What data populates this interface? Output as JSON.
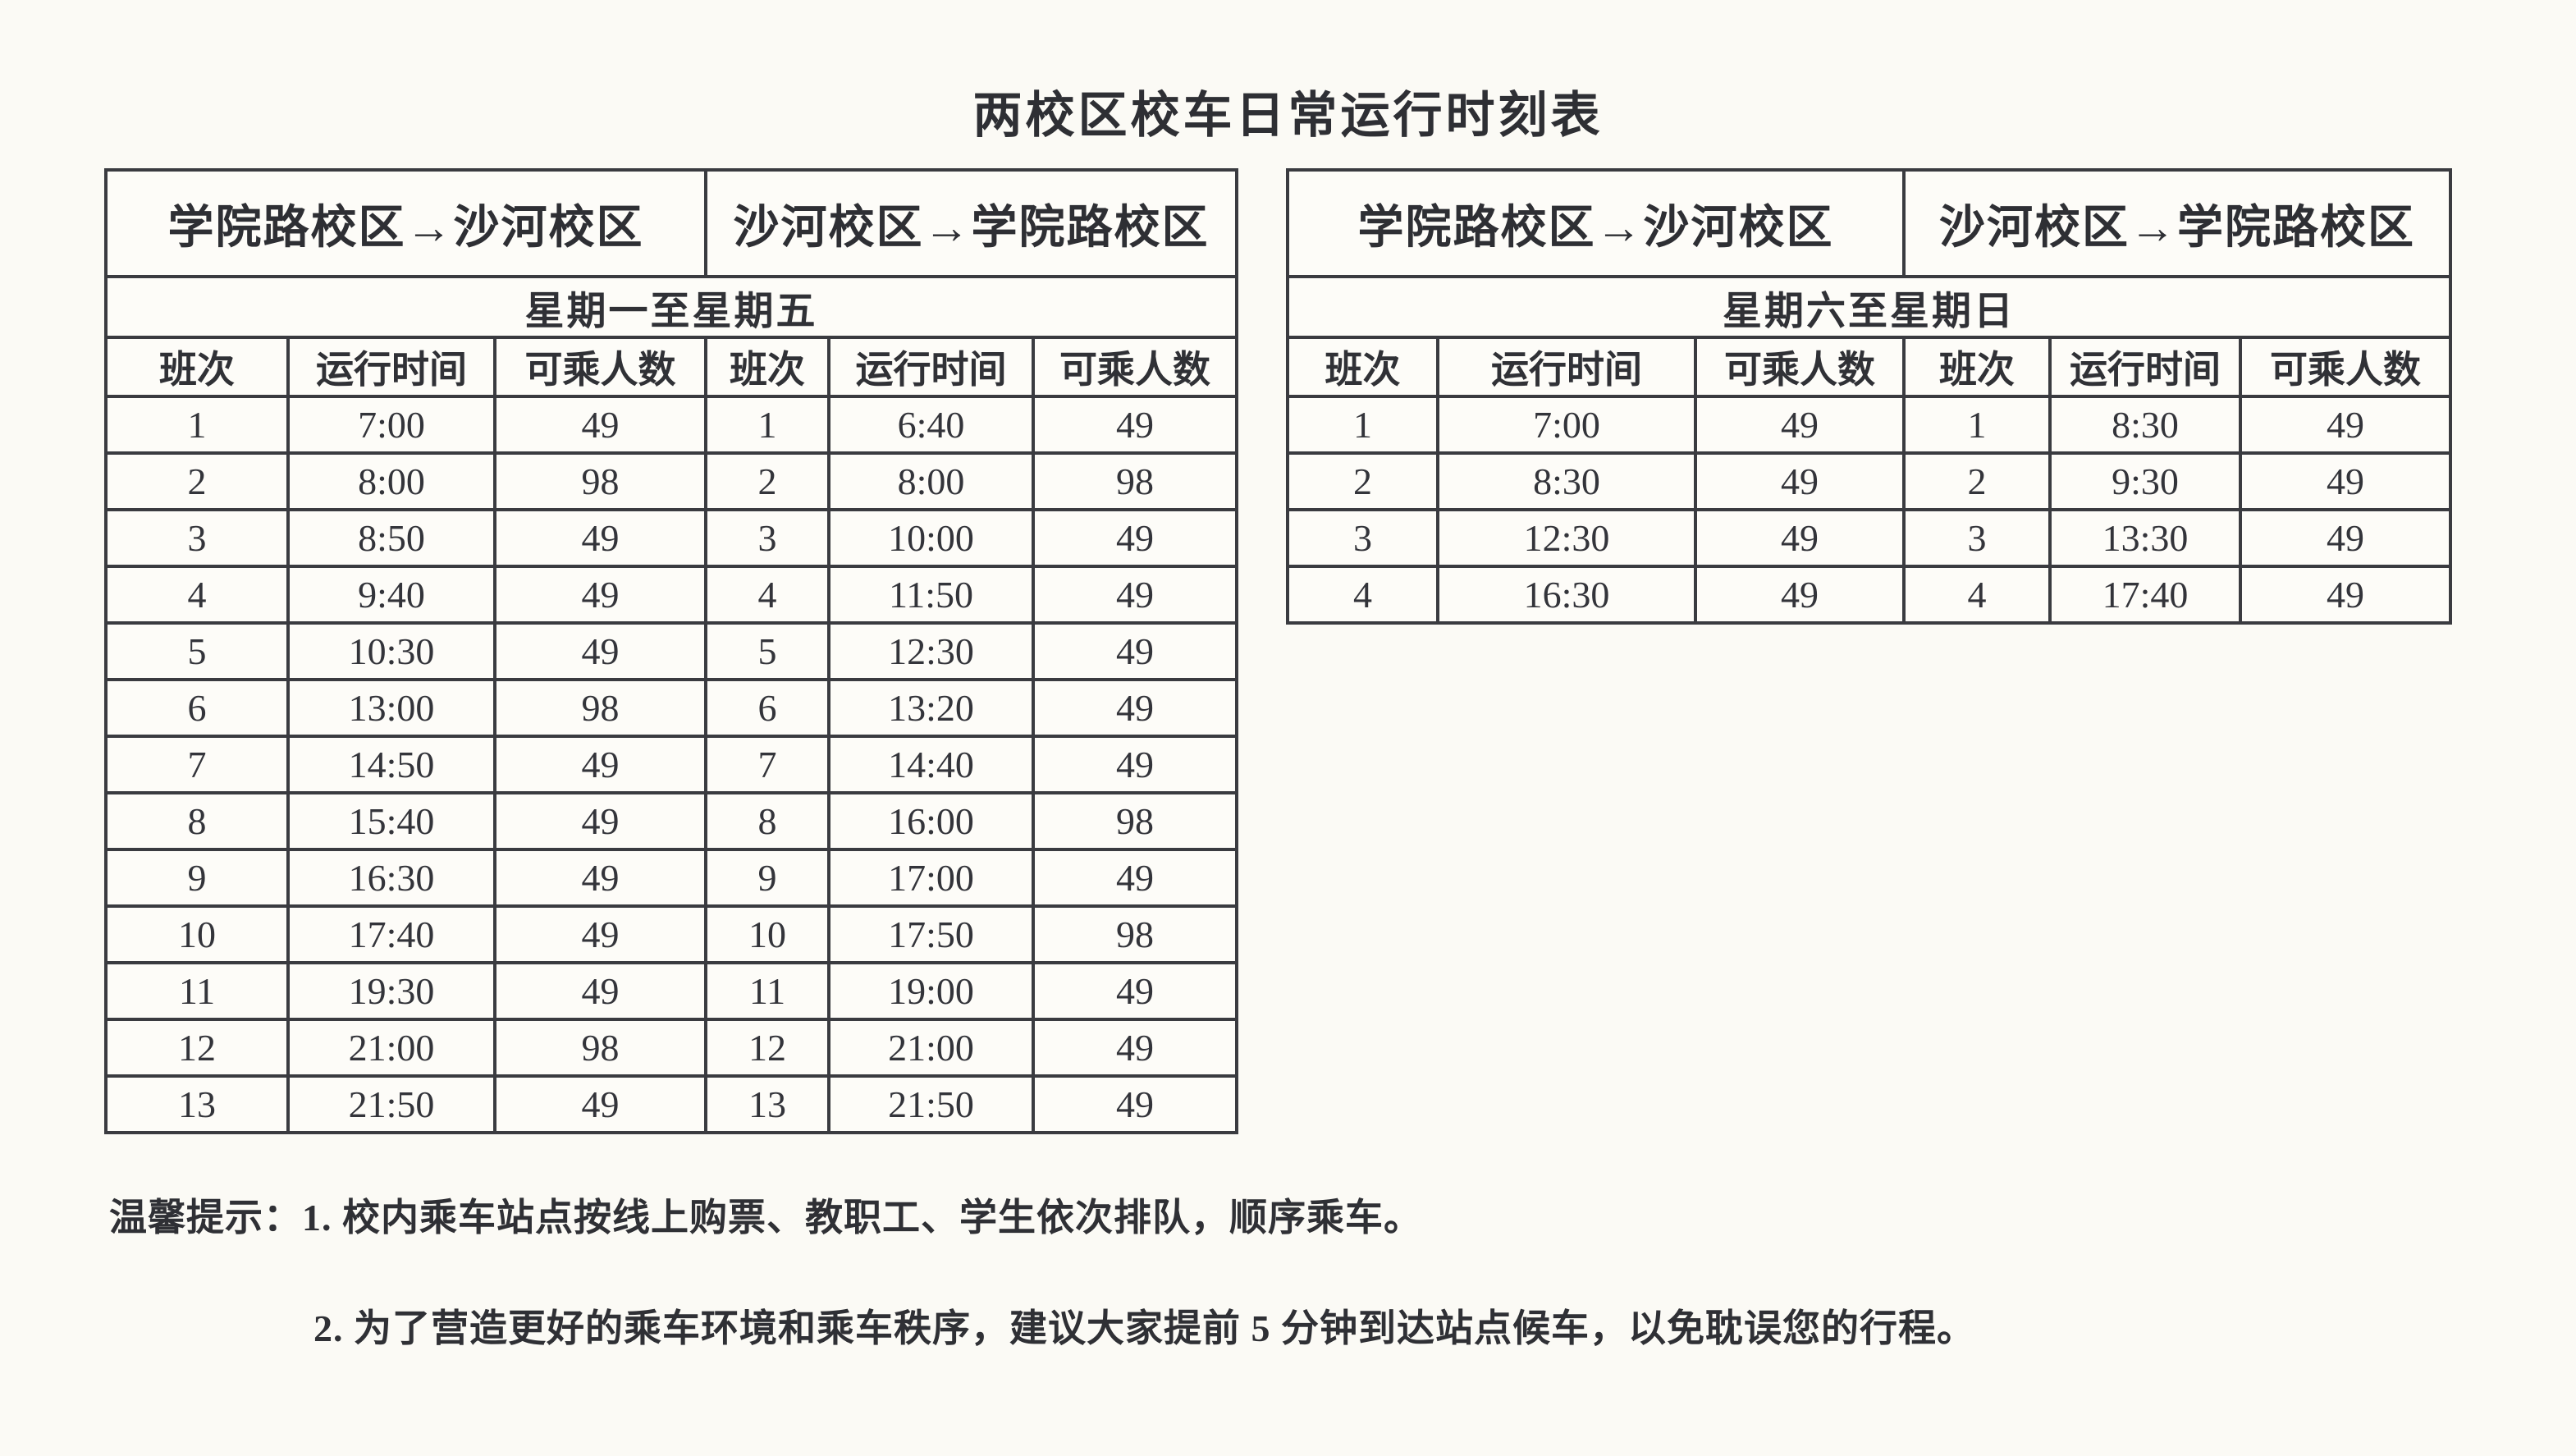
{
  "page": {
    "title": "两校区校车日常运行时刻表"
  },
  "colors": {
    "paper": "#fbfaf5",
    "cell_background": "#fdfcf8",
    "ink": "#303136",
    "border": "#3a3b40"
  },
  "weekday_table": {
    "route_outbound": "学院路校区→沙河校区",
    "route_return": "沙河校区→学院路校区",
    "period": "星期一至星期五",
    "columns": [
      "班次",
      "运行时间",
      "可乘人数",
      "班次",
      "运行时间",
      "可乘人数"
    ],
    "rows": [
      [
        "1",
        "7:00",
        "49",
        "1",
        "6:40",
        "49"
      ],
      [
        "2",
        "8:00",
        "98",
        "2",
        "8:00",
        "98"
      ],
      [
        "3",
        "8:50",
        "49",
        "3",
        "10:00",
        "49"
      ],
      [
        "4",
        "9:40",
        "49",
        "4",
        "11:50",
        "49"
      ],
      [
        "5",
        "10:30",
        "49",
        "5",
        "12:30",
        "49"
      ],
      [
        "6",
        "13:00",
        "98",
        "6",
        "13:20",
        "49"
      ],
      [
        "7",
        "14:50",
        "49",
        "7",
        "14:40",
        "49"
      ],
      [
        "8",
        "15:40",
        "49",
        "8",
        "16:00",
        "98"
      ],
      [
        "9",
        "16:30",
        "49",
        "9",
        "17:00",
        "49"
      ],
      [
        "10",
        "17:40",
        "49",
        "10",
        "17:50",
        "98"
      ],
      [
        "11",
        "19:30",
        "49",
        "11",
        "19:00",
        "49"
      ],
      [
        "12",
        "21:00",
        "98",
        "12",
        "21:00",
        "49"
      ],
      [
        "13",
        "21:50",
        "49",
        "13",
        "21:50",
        "49"
      ]
    ]
  },
  "weekend_table": {
    "route_outbound": "学院路校区→沙河校区",
    "route_return": "沙河校区→学院路校区",
    "period": "星期六至星期日",
    "columns": [
      "班次",
      "运行时间",
      "可乘人数",
      "班次",
      "运行时间",
      "可乘人数"
    ],
    "rows": [
      [
        "1",
        "7:00",
        "49",
        "1",
        "8:30",
        "49"
      ],
      [
        "2",
        "8:30",
        "49",
        "2",
        "9:30",
        "49"
      ],
      [
        "3",
        "12:30",
        "49",
        "3",
        "13:30",
        "49"
      ],
      [
        "4",
        "16:30",
        "49",
        "4",
        "17:40",
        "49"
      ]
    ]
  },
  "notes": {
    "line1": "温馨提示：1. 校内乘车站点按线上购票、教职工、学生依次排队，顺序乘车。",
    "line2": "2. 为了营造更好的乘车环境和乘车秩序，建议大家提前 5 分钟到达站点候车，以免耽误您的行程。"
  }
}
